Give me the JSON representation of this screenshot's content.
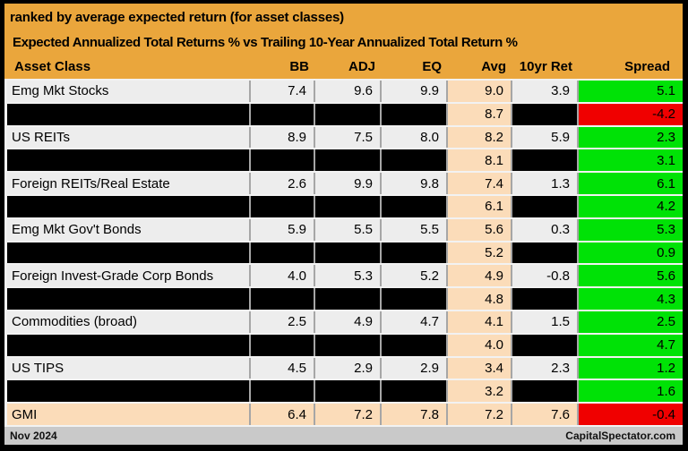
{
  "header": {
    "title": "ranked by average expected return (for asset classes)",
    "subtitle": "Expected Annualized Total Returns % vs Trailing 10-Year Annualized Total Return %",
    "columns": [
      "Asset Class",
      "BB",
      "ADJ",
      "EQ",
      "Avg",
      "10yr Ret",
      "Spread"
    ]
  },
  "chart_data": {
    "type": "table",
    "title": "ranked by average expected return (for asset classes)",
    "subtitle": "Expected Annualized Total Returns % vs Trailing 10-Year Annualized Total Return %",
    "columns": [
      "Asset Class",
      "BB",
      "ADJ",
      "EQ",
      "Avg",
      "10yr Ret",
      "Spread"
    ],
    "rows": [
      {
        "asset_class": "Emg Mkt Stocks",
        "bb": 7.4,
        "adj": 9.6,
        "eq": 9.9,
        "avg": 9.0,
        "ret_10yr": 3.9,
        "spread": 5.1,
        "redacted": false,
        "highlight": false
      },
      {
        "asset_class": null,
        "bb": null,
        "adj": null,
        "eq": null,
        "avg": 8.7,
        "ret_10yr": null,
        "spread": -4.2,
        "redacted": true,
        "highlight": false
      },
      {
        "asset_class": "US REITs",
        "bb": 8.9,
        "adj": 7.5,
        "eq": 8.0,
        "avg": 8.2,
        "ret_10yr": 5.9,
        "spread": 2.3,
        "redacted": false,
        "highlight": false
      },
      {
        "asset_class": null,
        "bb": null,
        "adj": null,
        "eq": null,
        "avg": 8.1,
        "ret_10yr": null,
        "spread": 3.1,
        "redacted": true,
        "highlight": false
      },
      {
        "asset_class": "Foreign REITs/Real Estate",
        "bb": 2.6,
        "adj": 9.9,
        "eq": 9.8,
        "avg": 7.4,
        "ret_10yr": 1.3,
        "spread": 6.1,
        "redacted": false,
        "highlight": false
      },
      {
        "asset_class": null,
        "bb": null,
        "adj": null,
        "eq": null,
        "avg": 6.1,
        "ret_10yr": null,
        "spread": 4.2,
        "redacted": true,
        "highlight": false
      },
      {
        "asset_class": "Emg Mkt Gov't Bonds",
        "bb": 5.9,
        "adj": 5.5,
        "eq": 5.5,
        "avg": 5.6,
        "ret_10yr": 0.3,
        "spread": 5.3,
        "redacted": false,
        "highlight": false
      },
      {
        "asset_class": null,
        "bb": null,
        "adj": null,
        "eq": null,
        "avg": 5.2,
        "ret_10yr": null,
        "spread": 0.9,
        "redacted": true,
        "highlight": false
      },
      {
        "asset_class": "Foreign Invest-Grade Corp Bonds",
        "bb": 4.0,
        "adj": 5.3,
        "eq": 5.2,
        "avg": 4.9,
        "ret_10yr": -0.8,
        "spread": 5.6,
        "redacted": false,
        "highlight": false
      },
      {
        "asset_class": null,
        "bb": null,
        "adj": null,
        "eq": null,
        "avg": 4.8,
        "ret_10yr": null,
        "spread": 4.3,
        "redacted": true,
        "highlight": false
      },
      {
        "asset_class": "Commodities (broad)",
        "bb": 2.5,
        "adj": 4.9,
        "eq": 4.7,
        "avg": 4.1,
        "ret_10yr": 1.5,
        "spread": 2.5,
        "redacted": false,
        "highlight": false
      },
      {
        "asset_class": null,
        "bb": null,
        "adj": null,
        "eq": null,
        "avg": 4.0,
        "ret_10yr": null,
        "spread": 4.7,
        "redacted": true,
        "highlight": false
      },
      {
        "asset_class": "US TIPS",
        "bb": 4.5,
        "adj": 2.9,
        "eq": 2.9,
        "avg": 3.4,
        "ret_10yr": 2.3,
        "spread": 1.2,
        "redacted": false,
        "highlight": false
      },
      {
        "asset_class": null,
        "bb": null,
        "adj": null,
        "eq": null,
        "avg": 3.2,
        "ret_10yr": null,
        "spread": 1.6,
        "redacted": true,
        "highlight": false
      },
      {
        "asset_class": "GMI",
        "bb": 6.4,
        "adj": 7.2,
        "eq": 7.8,
        "avg": 7.2,
        "ret_10yr": 7.6,
        "spread": -0.4,
        "redacted": false,
        "highlight": true
      }
    ]
  },
  "footer": {
    "date": "Nov 2024",
    "credit": "CapitalSpectator.com"
  },
  "colors": {
    "header_orange": "#EAA63C",
    "avg_peach": "#FBDCB9",
    "spread_positive_green": "#00E206",
    "spread_negative_red": "#F00000",
    "cell_gray": "#EDEDED",
    "redacted_black": "#000000",
    "footer_gray": "#C9C9C9"
  }
}
